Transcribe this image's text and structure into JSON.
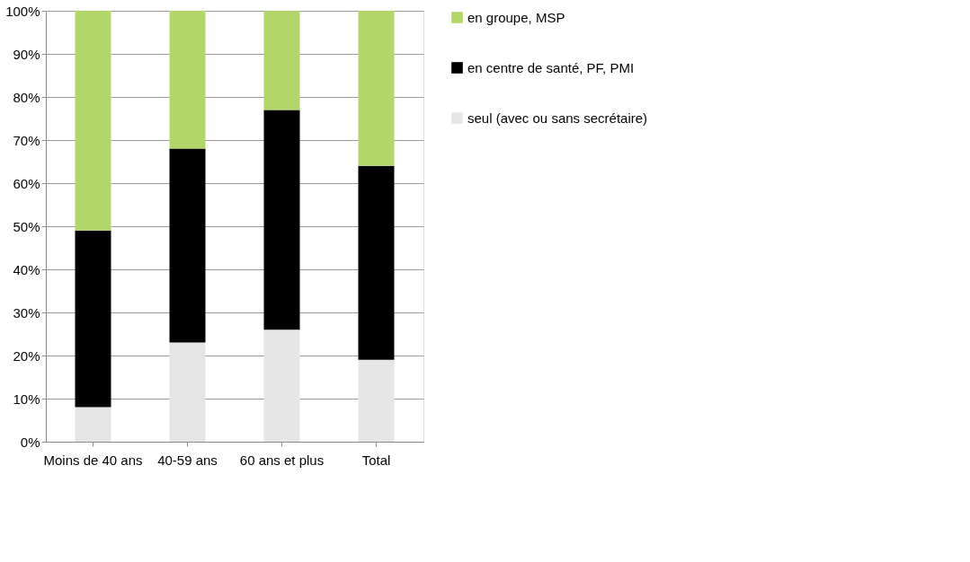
{
  "chart_data": {
    "type": "bar",
    "stacked": true,
    "categories": [
      "Moins de 40 ans",
      "40-59 ans",
      "60 ans et plus",
      "Total"
    ],
    "series": [
      {
        "name": "seul (avec ou sans secrétaire)",
        "color": "#e6e6e6",
        "values": [
          8,
          23,
          26,
          19
        ]
      },
      {
        "name": "en centre de santé, PF, PMI",
        "color": "#000000",
        "values": [
          41,
          45,
          51,
          45
        ]
      },
      {
        "name": "en groupe, MSP",
        "color": "#b3d66a",
        "values": [
          51,
          32,
          23,
          36
        ]
      }
    ],
    "ylim": [
      0,
      100
    ],
    "yticks": [
      {
        "value": 0,
        "label": "0%"
      },
      {
        "value": 10,
        "label": "10%"
      },
      {
        "value": 20,
        "label": "20%"
      },
      {
        "value": 30,
        "label": "30%"
      },
      {
        "value": 40,
        "label": "40%"
      },
      {
        "value": 50,
        "label": "50%"
      },
      {
        "value": 60,
        "label": "60%"
      },
      {
        "value": 70,
        "label": "70%"
      },
      {
        "value": 80,
        "label": "80%"
      },
      {
        "value": 90,
        "label": "90%"
      },
      {
        "value": 100,
        "label": "100%"
      }
    ],
    "grid": "y",
    "legend": "right"
  }
}
